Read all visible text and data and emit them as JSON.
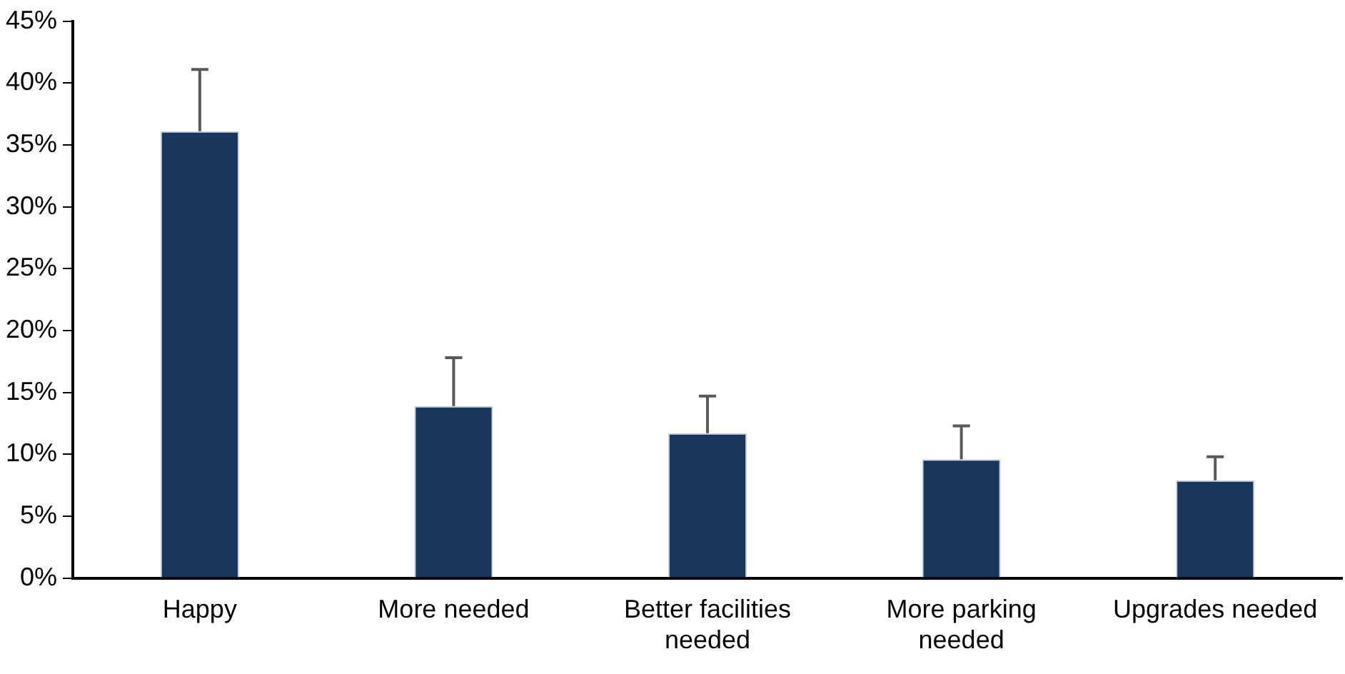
{
  "chart_data": {
    "type": "bar",
    "categories": [
      "Happy",
      "More needed",
      "Better facilities needed",
      "More parking needed",
      "Upgrades needed"
    ],
    "values": [
      36.1,
      13.9,
      11.7,
      9.6,
      7.9
    ],
    "errors": [
      [
        36.1,
        41.1
      ],
      [
        13.9,
        17.8
      ],
      [
        11.7,
        14.7
      ],
      [
        9.6,
        12.3
      ],
      [
        7.9,
        9.8
      ]
    ],
    "color": "#1b365d",
    "ylim": [
      0,
      45
    ],
    "yticks": [
      {
        "value": 0,
        "label": "0%"
      },
      {
        "value": 5,
        "label": "5%"
      },
      {
        "value": 10,
        "label": "10%"
      },
      {
        "value": 15,
        "label": "15%"
      },
      {
        "value": 20,
        "label": "20%"
      },
      {
        "value": 25,
        "label": "25%"
      },
      {
        "value": 30,
        "label": "30%"
      },
      {
        "value": 35,
        "label": "35%"
      },
      {
        "value": 40,
        "label": "40%"
      },
      {
        "value": 45,
        "label": "45%"
      }
    ],
    "grid": false,
    "legend": false
  }
}
